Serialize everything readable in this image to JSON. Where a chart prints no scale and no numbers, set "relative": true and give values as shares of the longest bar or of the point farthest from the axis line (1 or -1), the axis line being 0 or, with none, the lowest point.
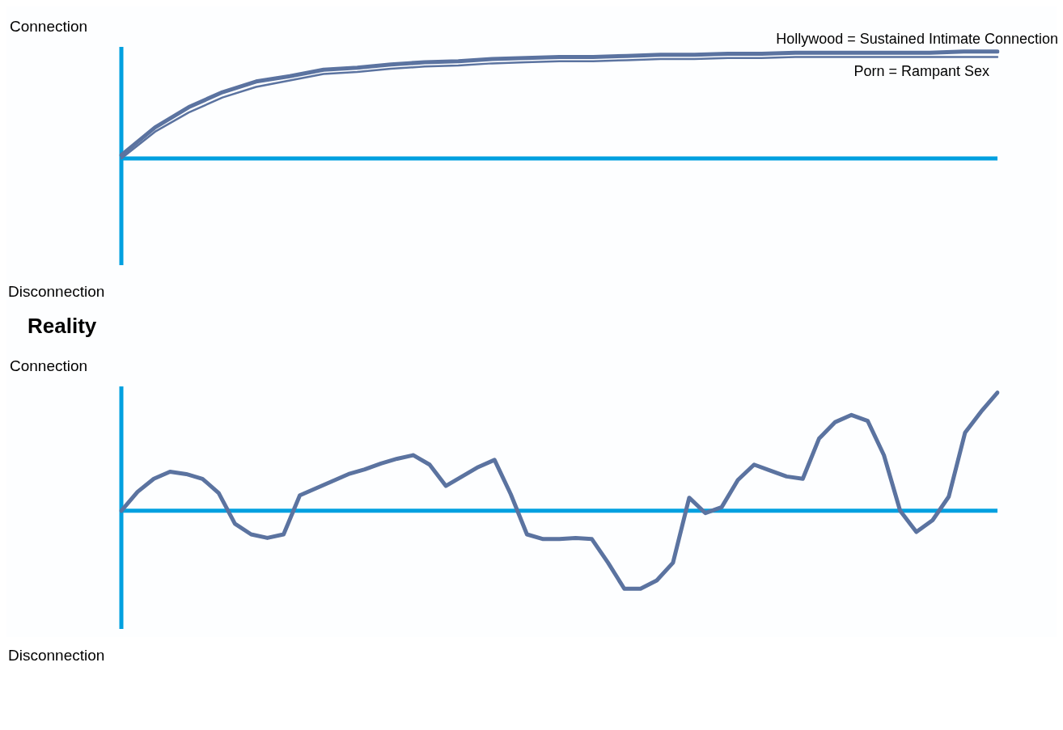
{
  "chart_data": [
    {
      "type": "line",
      "relative": true,
      "marker": "none",
      "annotations": [
        "Connection",
        "Disconnection"
      ],
      "ref_lines": [
        {
          "axis": "y",
          "value": 0,
          "color": "#00a0e0"
        }
      ],
      "categories": [
        null,
        null,
        null,
        null,
        null,
        null,
        null,
        null,
        null,
        null,
        null,
        null,
        null,
        null,
        null,
        null,
        null,
        null,
        null,
        null,
        null,
        null,
        null,
        null,
        null,
        null,
        null
      ],
      "series": [
        {
          "name": "Hollywood = Sustained Intimate Connection",
          "color": "#5b73a0",
          "values": [
            0.03,
            0.29,
            0.48,
            0.62,
            0.72,
            0.77,
            0.83,
            0.85,
            0.88,
            0.9,
            0.91,
            0.93,
            0.94,
            0.95,
            0.95,
            0.96,
            0.97,
            0.97,
            0.98,
            0.98,
            0.99,
            0.99,
            0.99,
            0.99,
            0.99,
            1.0,
            1.0
          ]
        },
        {
          "name": "Porn = Rampant Sex",
          "color": "#5b73a0",
          "values": [
            0.0,
            0.25,
            0.43,
            0.57,
            0.67,
            0.73,
            0.79,
            0.81,
            0.84,
            0.86,
            0.87,
            0.89,
            0.9,
            0.91,
            0.91,
            0.92,
            0.93,
            0.93,
            0.94,
            0.94,
            0.95,
            0.95,
            0.95,
            0.95,
            0.95,
            0.95,
            0.95
          ]
        }
      ]
    },
    {
      "type": "line",
      "title": "Reality",
      "relative": true,
      "marker": "none",
      "annotations": [
        "Connection",
        "Disconnection"
      ],
      "ref_lines": [
        {
          "axis": "y",
          "value": 0,
          "color": "#00a0e0"
        }
      ],
      "categories": [
        null,
        null,
        null,
        null,
        null,
        null,
        null,
        null,
        null,
        null,
        null,
        null,
        null,
        null,
        null,
        null,
        null,
        null,
        null,
        null,
        null,
        null,
        null,
        null,
        null,
        null,
        null,
        null,
        null,
        null,
        null,
        null,
        null,
        null,
        null,
        null,
        null,
        null,
        null,
        null,
        null,
        null,
        null,
        null,
        null,
        null,
        null,
        null,
        null,
        null,
        null,
        null,
        null,
        null,
        null
      ],
      "series": [
        {
          "color": "#5b73a0",
          "values": [
            0,
            0.16,
            0.27,
            0.33,
            0.31,
            0.27,
            0.15,
            -0.11,
            -0.2,
            -0.23,
            -0.2,
            0.13,
            0.19,
            0.25,
            0.31,
            0.35,
            0.4,
            0.44,
            0.47,
            0.39,
            0.21,
            0.29,
            0.37,
            0.43,
            0.14,
            -0.2,
            -0.24,
            -0.24,
            -0.23,
            -0.24,
            -0.44,
            -0.66,
            -0.66,
            -0.59,
            -0.44,
            0.11,
            -0.02,
            0.03,
            0.26,
            0.39,
            0.34,
            0.29,
            0.27,
            0.61,
            0.75,
            0.81,
            0.76,
            0.47,
            0,
            -0.18,
            -0.08,
            0.12,
            0.66,
            0.84,
            1.0
          ]
        }
      ]
    }
  ]
}
